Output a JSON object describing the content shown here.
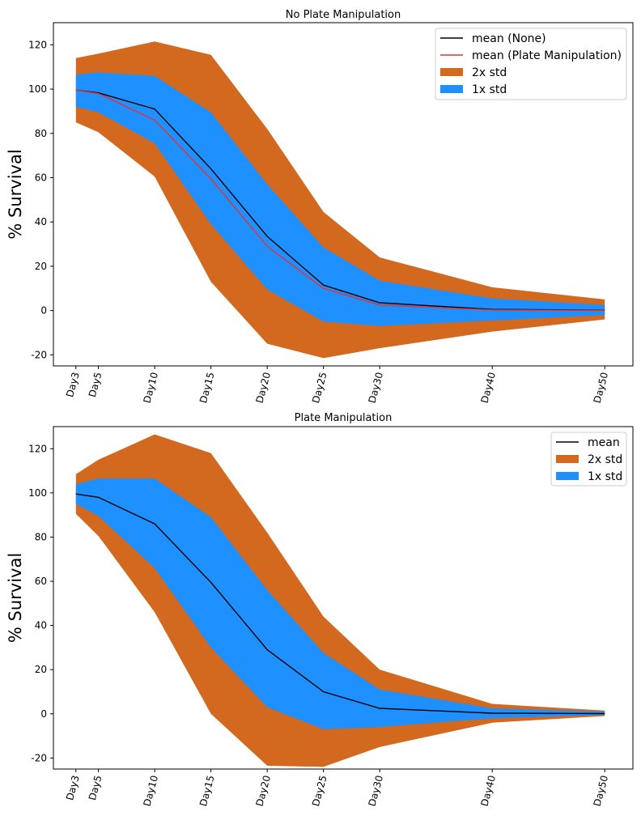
{
  "chart_data": [
    {
      "type": "area",
      "title": "No Plate Manipulation",
      "xlabel": "",
      "ylabel": "% Survival",
      "x": [
        3,
        5,
        10,
        15,
        20,
        25,
        30,
        40,
        50
      ],
      "categories": [
        "Day3",
        "Day5",
        "Day10",
        "Day15",
        "Day20",
        "Day25",
        "Day30",
        "Day40",
        "Day50"
      ],
      "xlim": [
        1,
        52.5
      ],
      "ylim": [
        -25,
        130
      ],
      "yticks": [
        -20,
        0,
        20,
        40,
        60,
        80,
        100,
        120
      ],
      "legend_position": "upper-right",
      "colors": {
        "band2": "#d2691e",
        "band1": "#1e90ff",
        "mean_none": "#000000",
        "mean_pm": "#e8302c"
      },
      "bands": [
        {
          "name": "2x std",
          "lower": [
            85,
            80.5,
            60.5,
            13,
            -15,
            -21.5,
            -17,
            -9.5,
            -4
          ],
          "upper": [
            114,
            116,
            121.5,
            115.5,
            82,
            44.5,
            24,
            10.5,
            5
          ]
        },
        {
          "name": "1x std",
          "lower": [
            92,
            89.5,
            75.5,
            39,
            9.5,
            -5,
            -7,
            -4.5,
            -2
          ],
          "upper": [
            106.5,
            107.5,
            106,
            89.5,
            57,
            28.5,
            13.5,
            5.5,
            2.5
          ]
        }
      ],
      "series": [
        {
          "name": "mean (None)",
          "values": [
            99.5,
            98.3,
            91,
            64,
            33.5,
            11.5,
            3.5,
            0.5,
            0.2
          ]
        },
        {
          "name": "mean (Plate Manipulation)",
          "values": [
            99.5,
            98,
            86,
            59.5,
            29,
            10,
            2.5,
            0.3,
            0.1
          ]
        }
      ],
      "legend_order": [
        "mean (None)",
        "mean (Plate Manipulation)",
        "2x std",
        "1x std"
      ]
    },
    {
      "type": "area",
      "title": "Plate Manipulation",
      "xlabel": "",
      "ylabel": "% Survival",
      "x": [
        3,
        5,
        10,
        15,
        20,
        25,
        30,
        40,
        50
      ],
      "categories": [
        "Day3",
        "Day5",
        "Day10",
        "Day15",
        "Day20",
        "Day25",
        "Day30",
        "Day40",
        "Day50"
      ],
      "xlim": [
        1,
        52.5
      ],
      "ylim": [
        -25,
        130
      ],
      "yticks": [
        -20,
        0,
        20,
        40,
        60,
        80,
        100,
        120
      ],
      "legend_position": "upper-right",
      "colors": {
        "band2": "#d2691e",
        "band1": "#1e90ff",
        "mean": "#000000"
      },
      "bands": [
        {
          "name": "2x std",
          "lower": [
            90.5,
            80.5,
            46,
            0,
            -23.5,
            -24,
            -15,
            -4,
            -1
          ],
          "upper": [
            108.5,
            115,
            126.5,
            118,
            82,
            44,
            20,
            4.5,
            1.5
          ]
        },
        {
          "name": "1x std",
          "lower": [
            95,
            89.5,
            66,
            30,
            3,
            -7,
            -6,
            -2,
            -0.5
          ],
          "upper": [
            104,
            106.5,
            106.5,
            89,
            56,
            27.5,
            11,
            2.5,
            1
          ]
        }
      ],
      "series": [
        {
          "name": "mean",
          "values": [
            99.5,
            98,
            86,
            59.5,
            29,
            10,
            2.5,
            0.3,
            0.1
          ]
        }
      ],
      "legend_order": [
        "mean",
        "2x std",
        "1x std"
      ]
    }
  ]
}
